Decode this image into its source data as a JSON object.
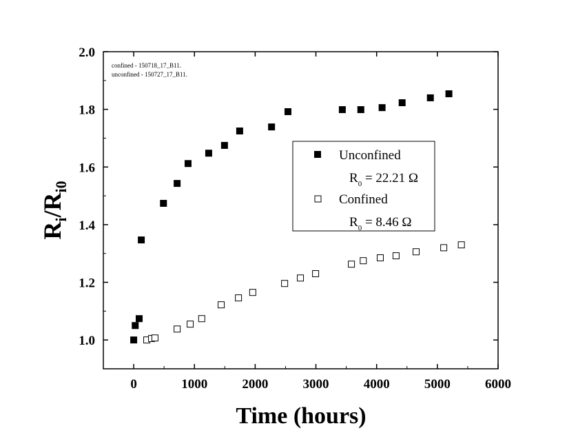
{
  "chart_data": {
    "type": "scatter",
    "title": "",
    "xlabel": "Time (hours)",
    "ylabel_main": "R",
    "ylabel_sub1": "i",
    "ylabel_mid": "/R",
    "ylabel_sub2": "i0",
    "xlim": [
      -500,
      6000
    ],
    "ylim": [
      0.9,
      2.0
    ],
    "xticks": [
      0,
      1000,
      2000,
      3000,
      4000,
      5000,
      6000
    ],
    "yticks": [
      1.0,
      1.2,
      1.4,
      1.6,
      1.8,
      2.0
    ],
    "xtick_labels": [
      "0",
      "1000",
      "2000",
      "3000",
      "4000",
      "5000",
      "6000"
    ],
    "ytick_labels": [
      "1.0",
      "1.2",
      "1.4",
      "1.6",
      "1.8",
      "2.0"
    ],
    "annotations": [
      "confined - 150718_17_B11.",
      "unconfined - 150727_17_B11."
    ],
    "legend_position": "center-right",
    "series": [
      {
        "name": "Unconfined",
        "legend_note_main": "R",
        "legend_note_sub": "0",
        "legend_note_value": " = 22.21 Ω",
        "marker": "filled-square",
        "color": "#000000",
        "x": [
          0,
          25,
          90,
          125,
          490,
          715,
          895,
          1235,
          1495,
          1745,
          2270,
          2540,
          3435,
          3740,
          4090,
          4420,
          4885,
          5190
        ],
        "y": [
          1.0,
          1.05,
          1.074,
          1.347,
          1.474,
          1.543,
          1.612,
          1.648,
          1.675,
          1.725,
          1.739,
          1.792,
          1.799,
          1.799,
          1.806,
          1.823,
          1.84,
          1.854
        ]
      },
      {
        "name": "Confined",
        "legend_note_main": "R",
        "legend_note_sub": "0",
        "legend_note_value": " = 8.46 Ω",
        "marker": "open-square",
        "color": "#000000",
        "x": [
          215,
          295,
          350,
          715,
          930,
          1120,
          1440,
          1725,
          1960,
          2485,
          2745,
          2995,
          3585,
          3780,
          4060,
          4320,
          4650,
          5105,
          5395
        ],
        "y": [
          1.0,
          1.005,
          1.007,
          1.038,
          1.055,
          1.074,
          1.122,
          1.146,
          1.165,
          1.196,
          1.215,
          1.23,
          1.263,
          1.275,
          1.285,
          1.292,
          1.306,
          1.32,
          1.33
        ]
      }
    ]
  }
}
